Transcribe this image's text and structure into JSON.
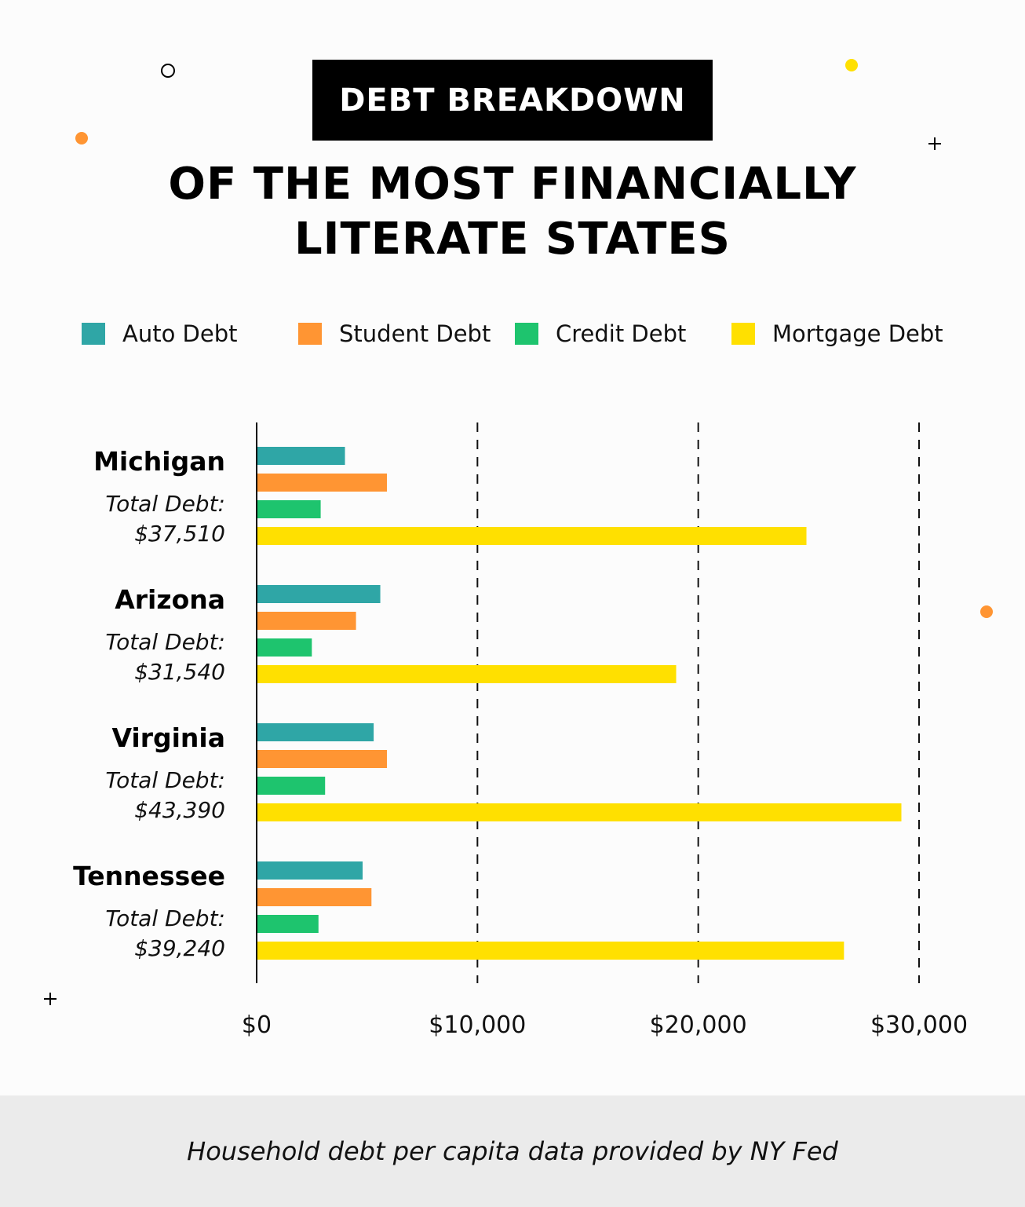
{
  "header": {
    "badge": "DEBT BREAKDOWN",
    "title_line1": "OF THE MOST FINANCIALLY",
    "title_line2": "LITERATE STATES"
  },
  "colors": {
    "auto": "#2fa6a6",
    "student": "#ff9533",
    "credit": "#1ec46e",
    "mortgage": "#ffe000"
  },
  "chart_data": {
    "type": "bar",
    "orientation": "horizontal",
    "categories": [
      "Michigan",
      "Arizona",
      "Virginia",
      "Tennessee"
    ],
    "category_sublabel": "Total Debt:",
    "category_totals": [
      "$37,510",
      "$31,540",
      "$43,390",
      "$39,240"
    ],
    "series": [
      {
        "name": "Auto Debt",
        "values": [
          4000,
          5600,
          5300,
          4800
        ]
      },
      {
        "name": "Student Debt",
        "values": [
          5900,
          4500,
          5900,
          5200
        ]
      },
      {
        "name": "Credit Debt",
        "values": [
          2900,
          2500,
          3100,
          2800
        ]
      },
      {
        "name": "Mortgage Debt",
        "values": [
          24900,
          19000,
          29200,
          26600
        ]
      }
    ],
    "xlim": [
      0,
      30000
    ],
    "xticks": [
      0,
      10000,
      20000,
      30000
    ],
    "xtick_labels": [
      "$0",
      "$10,000",
      "$20,000",
      "$30,000"
    ],
    "grid": "vertical dashed",
    "legend": "top"
  },
  "footer": {
    "source": "Household debt per capita data provided by NY Fed"
  }
}
